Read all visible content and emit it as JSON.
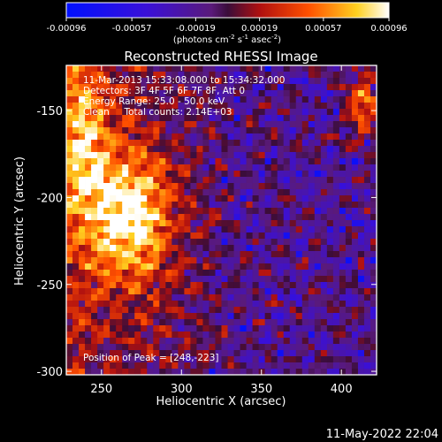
{
  "chart_data": {
    "type": "heatmap",
    "title": "Reconstructed RHESSI Image",
    "xlabel": "Heliocentric X (arcsec)",
    "ylabel": "Heliocentric Y (arcsec)",
    "xlim": [
      228,
      422
    ],
    "ylim": [
      -302,
      -124
    ],
    "xticks": [
      250,
      300,
      350,
      400
    ],
    "yticks": [
      -150,
      -200,
      -250,
      -300
    ],
    "colorbar": {
      "range": [
        -0.00096,
        0.00096
      ],
      "ticks": [
        "-0.00096",
        "-0.00057",
        "-0.00019",
        "0.00019",
        "0.00057",
        "0.00096"
      ],
      "unit_main": "(photons cm",
      "unit_sup1": "-2",
      "unit_mid": " s",
      "unit_sup2": "-1",
      "unit_mid2": " asec",
      "unit_sup3": "-2",
      "unit_end": ")",
      "colormap": "blue-purple-red-yellow-white"
    },
    "annotations": {
      "time_range": "11-Mar-2013 15:33:08.000 to 15:34:32.000",
      "detectors": "Detectors: 3F 4F 5F 6F 7F 8F, Att 0",
      "energy": "Energy Range: 25.0 - 50.0 keV",
      "method": "Clean     Total counts: 2.14E+03",
      "peak": "Position of Peak = [248,-223]"
    },
    "peak_position": [
      248,
      -223
    ],
    "date_stamp": "11-May-2022 22:04"
  }
}
